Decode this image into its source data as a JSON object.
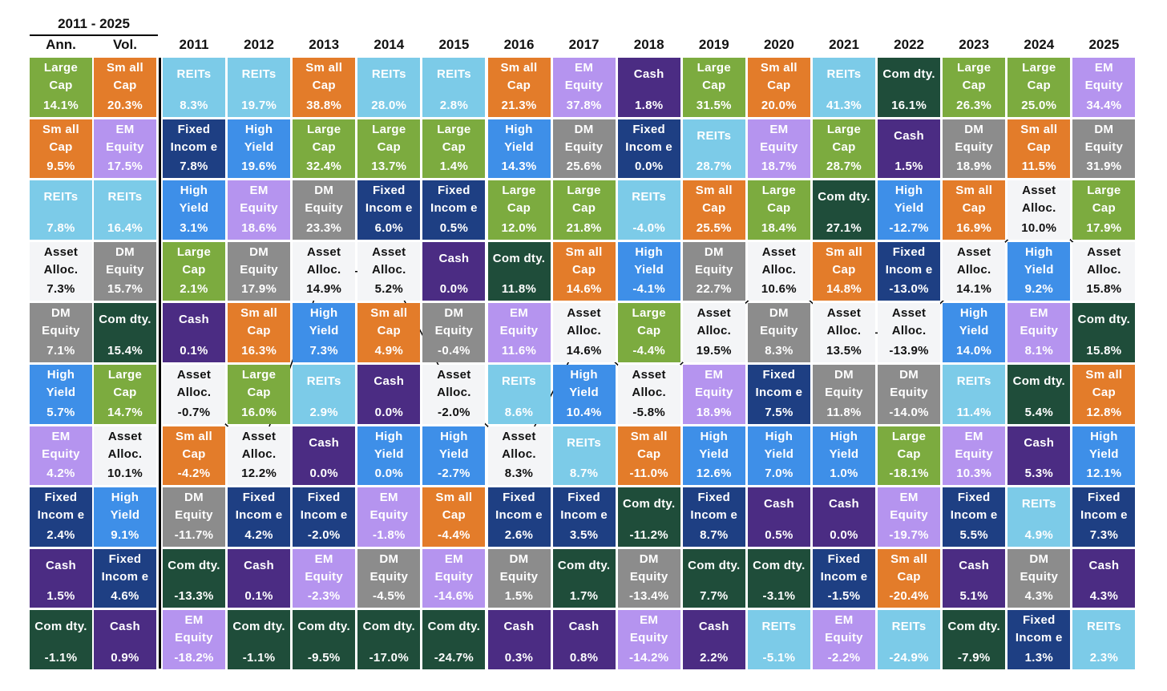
{
  "chart_data": {
    "type": "table",
    "title": "2011 - 2025",
    "summary_headers": [
      "Ann.",
      "Vol."
    ],
    "years": [
      "2011",
      "2012",
      "2013",
      "2014",
      "2015",
      "2016",
      "2017",
      "2018",
      "2019",
      "2020",
      "2021",
      "2022",
      "2023",
      "2024",
      "2025"
    ],
    "asset_classes": {
      "LC": {
        "label": "Large\nCap",
        "color": "#7cab3f",
        "text_color": "#ffffff"
      },
      "SC": {
        "label": "Sm all\nCap",
        "color": "#e37c2a",
        "text_color": "#ffffff"
      },
      "RE": {
        "label": "REITs",
        "color": "#7ccbe8",
        "text_color": "#ffffff"
      },
      "AA": {
        "label": "Asset\nAlloc.",
        "color": "#f4f5f7",
        "text_color": "#111111"
      },
      "DM": {
        "label": "DM\nEquity",
        "color": "#8c8c8c",
        "text_color": "#ffffff"
      },
      "HY": {
        "label": "High\nYield",
        "color": "#3e8fe8",
        "text_color": "#ffffff"
      },
      "EM": {
        "label": "EM\nEquity",
        "color": "#b594ef",
        "text_color": "#ffffff"
      },
      "FI": {
        "label": "Fixed\nIncom e",
        "color": "#1e3f83",
        "text_color": "#ffffff"
      },
      "CA": {
        "label": "Cash",
        "color": "#4b2c83",
        "text_color": "#ffffff"
      },
      "CO": {
        "label": "Com dty.",
        "color": "#1f4d3a",
        "text_color": "#ffffff"
      }
    },
    "ann": [
      {
        "k": "LC",
        "v": "14.1%"
      },
      {
        "k": "SC",
        "v": "9.5%"
      },
      {
        "k": "RE",
        "v": "7.8%"
      },
      {
        "k": "AA",
        "v": "7.3%"
      },
      {
        "k": "DM",
        "v": "7.1%"
      },
      {
        "k": "HY",
        "v": "5.7%"
      },
      {
        "k": "EM",
        "v": "4.2%"
      },
      {
        "k": "FI",
        "v": "2.4%"
      },
      {
        "k": "CA",
        "v": "1.5%"
      },
      {
        "k": "CO",
        "v": "-1.1%"
      }
    ],
    "vol": [
      {
        "k": "SC",
        "v": "20.3%"
      },
      {
        "k": "EM",
        "v": "17.5%"
      },
      {
        "k": "RE",
        "v": "16.4%"
      },
      {
        "k": "DM",
        "v": "15.7%"
      },
      {
        "k": "CO",
        "v": "15.4%"
      },
      {
        "k": "LC",
        "v": "14.7%"
      },
      {
        "k": "AA",
        "v": "10.1%"
      },
      {
        "k": "HY",
        "v": "9.1%"
      },
      {
        "k": "FI",
        "v": "4.6%"
      },
      {
        "k": "CA",
        "v": "0.9%"
      }
    ],
    "annual_returns": [
      [
        {
          "k": "RE",
          "v": "8.3%"
        },
        {
          "k": "FI",
          "v": "7.8%"
        },
        {
          "k": "HY",
          "v": "3.1%"
        },
        {
          "k": "LC",
          "v": "2.1%"
        },
        {
          "k": "CA",
          "v": "0.1%"
        },
        {
          "k": "AA",
          "v": "-0.7%"
        },
        {
          "k": "SC",
          "v": "-4.2%"
        },
        {
          "k": "DM",
          "v": "-11.7%"
        },
        {
          "k": "CO",
          "v": "-13.3%"
        },
        {
          "k": "EM",
          "v": "-18.2%"
        }
      ],
      [
        {
          "k": "RE",
          "v": "19.7%"
        },
        {
          "k": "HY",
          "v": "19.6%"
        },
        {
          "k": "EM",
          "v": "18.6%"
        },
        {
          "k": "DM",
          "v": "17.9%"
        },
        {
          "k": "SC",
          "v": "16.3%"
        },
        {
          "k": "LC",
          "v": "16.0%"
        },
        {
          "k": "AA",
          "v": "12.2%"
        },
        {
          "k": "FI",
          "v": "4.2%"
        },
        {
          "k": "CA",
          "v": "0.1%"
        },
        {
          "k": "CO",
          "v": "-1.1%"
        }
      ],
      [
        {
          "k": "SC",
          "v": "38.8%"
        },
        {
          "k": "LC",
          "v": "32.4%"
        },
        {
          "k": "DM",
          "v": "23.3%"
        },
        {
          "k": "AA",
          "v": "14.9%"
        },
        {
          "k": "HY",
          "v": "7.3%"
        },
        {
          "k": "RE",
          "v": "2.9%"
        },
        {
          "k": "CA",
          "v": "0.0%"
        },
        {
          "k": "FI",
          "v": "-2.0%"
        },
        {
          "k": "EM",
          "v": "-2.3%"
        },
        {
          "k": "CO",
          "v": "-9.5%"
        }
      ],
      [
        {
          "k": "RE",
          "v": "28.0%"
        },
        {
          "k": "LC",
          "v": "13.7%"
        },
        {
          "k": "FI",
          "v": "6.0%"
        },
        {
          "k": "AA",
          "v": "5.2%"
        },
        {
          "k": "SC",
          "v": "4.9%"
        },
        {
          "k": "CA",
          "v": "0.0%"
        },
        {
          "k": "HY",
          "v": "0.0%"
        },
        {
          "k": "EM",
          "v": "-1.8%"
        },
        {
          "k": "DM",
          "v": "-4.5%"
        },
        {
          "k": "CO",
          "v": "-17.0%"
        }
      ],
      [
        {
          "k": "RE",
          "v": "2.8%"
        },
        {
          "k": "LC",
          "v": "1.4%"
        },
        {
          "k": "FI",
          "v": "0.5%"
        },
        {
          "k": "CA",
          "v": "0.0%"
        },
        {
          "k": "DM",
          "v": "-0.4%"
        },
        {
          "k": "AA",
          "v": "-2.0%"
        },
        {
          "k": "HY",
          "v": "-2.7%"
        },
        {
          "k": "SC",
          "v": "-4.4%"
        },
        {
          "k": "EM",
          "v": "-14.6%"
        },
        {
          "k": "CO",
          "v": "-24.7%"
        }
      ],
      [
        {
          "k": "SC",
          "v": "21.3%"
        },
        {
          "k": "HY",
          "v": "14.3%"
        },
        {
          "k": "LC",
          "v": "12.0%"
        },
        {
          "k": "CO",
          "v": "11.8%"
        },
        {
          "k": "EM",
          "v": "11.6%"
        },
        {
          "k": "RE",
          "v": "8.6%"
        },
        {
          "k": "AA",
          "v": "8.3%"
        },
        {
          "k": "FI",
          "v": "2.6%"
        },
        {
          "k": "DM",
          "v": "1.5%"
        },
        {
          "k": "CA",
          "v": "0.3%"
        }
      ],
      [
        {
          "k": "EM",
          "v": "37.8%"
        },
        {
          "k": "DM",
          "v": "25.6%"
        },
        {
          "k": "LC",
          "v": "21.8%"
        },
        {
          "k": "SC",
          "v": "14.6%"
        },
        {
          "k": "AA",
          "v": "14.6%"
        },
        {
          "k": "HY",
          "v": "10.4%"
        },
        {
          "k": "RE",
          "v": "8.7%"
        },
        {
          "k": "FI",
          "v": "3.5%"
        },
        {
          "k": "CO",
          "v": "1.7%"
        },
        {
          "k": "CA",
          "v": "0.8%"
        }
      ],
      [
        {
          "k": "CA",
          "v": "1.8%"
        },
        {
          "k": "FI",
          "v": "0.0%"
        },
        {
          "k": "RE",
          "v": "-4.0%"
        },
        {
          "k": "HY",
          "v": "-4.1%"
        },
        {
          "k": "LC",
          "v": "-4.4%"
        },
        {
          "k": "AA",
          "v": "-5.8%"
        },
        {
          "k": "SC",
          "v": "-11.0%"
        },
        {
          "k": "CO",
          "v": "-11.2%"
        },
        {
          "k": "DM",
          "v": "-13.4%"
        },
        {
          "k": "EM",
          "v": "-14.2%"
        }
      ],
      [
        {
          "k": "LC",
          "v": "31.5%"
        },
        {
          "k": "RE",
          "v": "28.7%"
        },
        {
          "k": "SC",
          "v": "25.5%"
        },
        {
          "k": "DM",
          "v": "22.7%"
        },
        {
          "k": "AA",
          "v": "19.5%"
        },
        {
          "k": "EM",
          "v": "18.9%"
        },
        {
          "k": "HY",
          "v": "12.6%"
        },
        {
          "k": "FI",
          "v": "8.7%"
        },
        {
          "k": "CO",
          "v": "7.7%"
        },
        {
          "k": "CA",
          "v": "2.2%"
        }
      ],
      [
        {
          "k": "SC",
          "v": "20.0%"
        },
        {
          "k": "EM",
          "v": "18.7%"
        },
        {
          "k": "LC",
          "v": "18.4%"
        },
        {
          "k": "AA",
          "v": "10.6%"
        },
        {
          "k": "DM",
          "v": "8.3%"
        },
        {
          "k": "FI",
          "v": "7.5%"
        },
        {
          "k": "HY",
          "v": "7.0%"
        },
        {
          "k": "CA",
          "v": "0.5%"
        },
        {
          "k": "CO",
          "v": "-3.1%"
        },
        {
          "k": "RE",
          "v": "-5.1%"
        }
      ],
      [
        {
          "k": "RE",
          "v": "41.3%"
        },
        {
          "k": "LC",
          "v": "28.7%"
        },
        {
          "k": "CO",
          "v": "27.1%"
        },
        {
          "k": "SC",
          "v": "14.8%"
        },
        {
          "k": "AA",
          "v": "13.5%"
        },
        {
          "k": "DM",
          "v": "11.8%"
        },
        {
          "k": "HY",
          "v": "1.0%"
        },
        {
          "k": "CA",
          "v": "0.0%"
        },
        {
          "k": "FI",
          "v": "-1.5%"
        },
        {
          "k": "EM",
          "v": "-2.2%"
        }
      ],
      [
        {
          "k": "CO",
          "v": "16.1%"
        },
        {
          "k": "CA",
          "v": "1.5%"
        },
        {
          "k": "HY",
          "v": "-12.7%"
        },
        {
          "k": "FI",
          "v": "-13.0%"
        },
        {
          "k": "AA",
          "v": "-13.9%"
        },
        {
          "k": "DM",
          "v": "-14.0%"
        },
        {
          "k": "LC",
          "v": "-18.1%"
        },
        {
          "k": "EM",
          "v": "-19.7%"
        },
        {
          "k": "SC",
          "v": "-20.4%"
        },
        {
          "k": "RE",
          "v": "-24.9%"
        }
      ],
      [
        {
          "k": "LC",
          "v": "26.3%"
        },
        {
          "k": "DM",
          "v": "18.9%"
        },
        {
          "k": "SC",
          "v": "16.9%"
        },
        {
          "k": "AA",
          "v": "14.1%"
        },
        {
          "k": "HY",
          "v": "14.0%"
        },
        {
          "k": "RE",
          "v": "11.4%"
        },
        {
          "k": "EM",
          "v": "10.3%"
        },
        {
          "k": "FI",
          "v": "5.5%"
        },
        {
          "k": "CA",
          "v": "5.1%"
        },
        {
          "k": "CO",
          "v": "-7.9%"
        }
      ],
      [
        {
          "k": "LC",
          "v": "25.0%"
        },
        {
          "k": "SC",
          "v": "11.5%"
        },
        {
          "k": "AA",
          "v": "10.0%"
        },
        {
          "k": "HY",
          "v": "9.2%"
        },
        {
          "k": "EM",
          "v": "8.1%"
        },
        {
          "k": "CO",
          "v": "5.4%"
        },
        {
          "k": "CA",
          "v": "5.3%"
        },
        {
          "k": "RE",
          "v": "4.9%"
        },
        {
          "k": "DM",
          "v": "4.3%"
        },
        {
          "k": "FI",
          "v": "1.3%"
        }
      ],
      [
        {
          "k": "EM",
          "v": "34.4%"
        },
        {
          "k": "DM",
          "v": "31.9%"
        },
        {
          "k": "LC",
          "v": "17.9%"
        },
        {
          "k": "AA",
          "v": "15.8%"
        },
        {
          "k": "CO",
          "v": "15.8%"
        },
        {
          "k": "SC",
          "v": "12.8%"
        },
        {
          "k": "HY",
          "v": "12.1%"
        },
        {
          "k": "FI",
          "v": "7.3%"
        },
        {
          "k": "CA",
          "v": "4.3%"
        },
        {
          "k": "RE",
          "v": "2.3%"
        }
      ]
    ],
    "highlight_line": {
      "asset": "AA",
      "description": "Asset Alloc. rank path across years",
      "line_color": "#000000"
    }
  }
}
